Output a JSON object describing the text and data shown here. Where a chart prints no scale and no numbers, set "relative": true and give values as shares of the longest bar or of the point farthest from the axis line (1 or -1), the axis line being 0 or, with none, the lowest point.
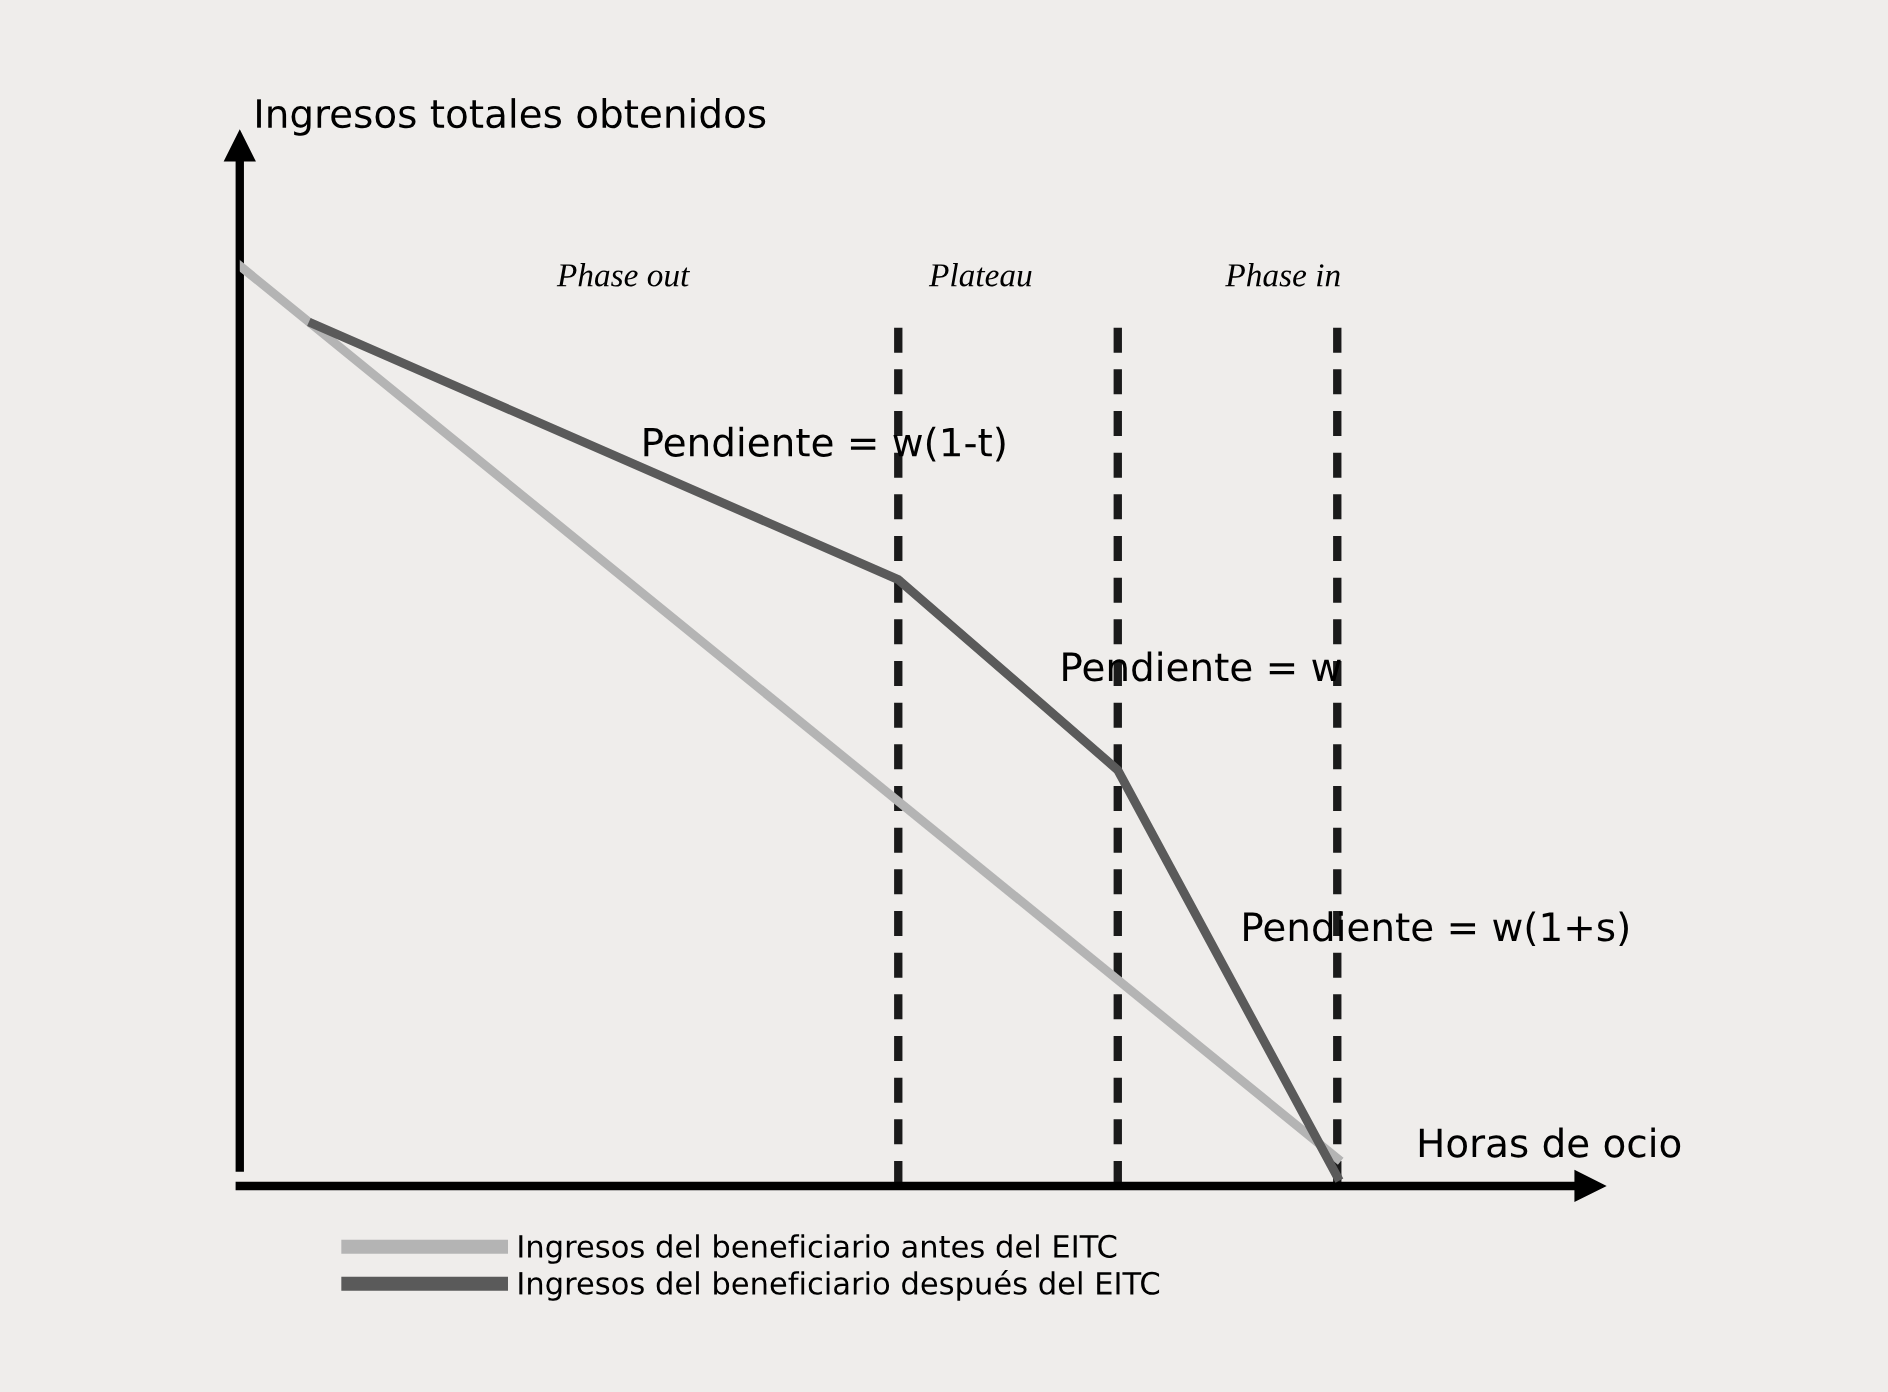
{
  "chart_data": {
    "type": "line",
    "relative": true,
    "ylabel": "Ingresos totales obtenidos",
    "xlabel": "Horas de ocio",
    "categories": [
      null,
      null,
      null,
      null,
      null,
      null,
      null,
      null,
      null,
      null,
      null,
      null,
      null,
      null,
      null,
      null,
      null,
      null,
      null,
      null,
      null,
      null,
      null,
      null,
      null,
      null,
      null,
      null,
      null,
      null,
      null,
      null,
      null,
      null,
      null,
      null,
      null,
      null,
      null,
      null,
      null,
      null,
      null,
      null,
      null,
      null,
      null,
      null,
      null,
      null,
      null,
      null,
      null,
      null,
      null,
      null,
      null,
      null,
      null,
      null,
      null
    ],
    "legend": "bottom",
    "line_style": "solid",
    "grid": "x",
    "series": [
      {
        "name": "Ingresos del beneficiario antes del EITC",
        "color": "#b4b4b4",
        "values": [
          1,
          null,
          null,
          null,
          null,
          null,
          null,
          null,
          null,
          null,
          null,
          null,
          null,
          null,
          null,
          null,
          null,
          null,
          null,
          null,
          null,
          null,
          null,
          null,
          null,
          null,
          null,
          null,
          null,
          null,
          null,
          null,
          null,
          null,
          null,
          null,
          null,
          null,
          null,
          null,
          null,
          null,
          null,
          null,
          null,
          null,
          null,
          null,
          null,
          null,
          null,
          null,
          null,
          null,
          null,
          null,
          null,
          null,
          null,
          null,
          0.03
        ]
      },
      {
        "name": "Ingresos del beneficiario después del EITC",
        "color": "#5a5a5a",
        "values": [
          null,
          null,
          null,
          null,
          0.937,
          null,
          null,
          null,
          null,
          null,
          null,
          null,
          null,
          null,
          null,
          null,
          null,
          null,
          null,
          null,
          null,
          null,
          null,
          null,
          null,
          null,
          null,
          null,
          null,
          null,
          null,
          null,
          null,
          null,
          null,
          null,
          0.659,
          null,
          null,
          null,
          null,
          null,
          null,
          null,
          null,
          null,
          null,
          null,
          0.452,
          null,
          null,
          null,
          null,
          null,
          null,
          null,
          null,
          null,
          null,
          null,
          0.01
        ]
      }
    ],
    "annotations": [
      "Phase out",
      "Plateau",
      "Phase in",
      "Pendiente = w(1-t)",
      "Pendiente = w",
      "Pendiente = w(1+s)"
    ]
  }
}
